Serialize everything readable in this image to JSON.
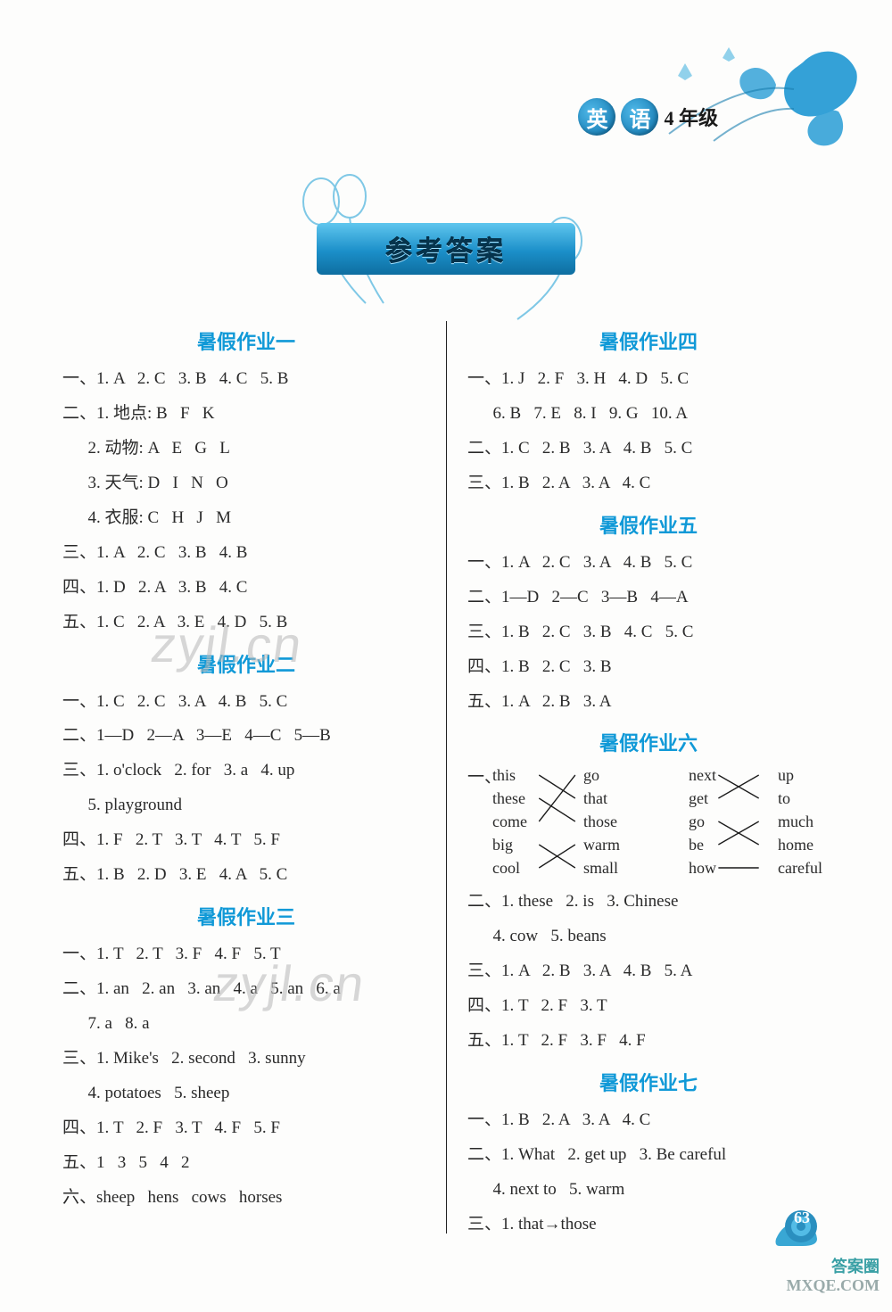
{
  "header": {
    "subject_chars": [
      "英",
      "语"
    ],
    "grade": "4 年级",
    "flower_color": "#2a9dd6",
    "leaf_color": "#1a7fb0"
  },
  "title": "参考答案",
  "page_number": "63",
  "watermark": "zyjl.cn",
  "watermark_brand_top": "答案圈",
  "watermark_brand_bottom": "MXQE.COM",
  "left": [
    {
      "type": "title",
      "text": "暑假作业一"
    },
    {
      "type": "line",
      "text": "一、1. A   2. C   3. B   4. C   5. B"
    },
    {
      "type": "line",
      "text": "二、1. 地点: B   F   K"
    },
    {
      "type": "line",
      "text": "      2. 动物: A   E   G   L"
    },
    {
      "type": "line",
      "text": "      3. 天气: D   I   N   O"
    },
    {
      "type": "line",
      "text": "      4. 衣服: C   H   J   M"
    },
    {
      "type": "line",
      "text": "三、1. A   2. C   3. B   4. B"
    },
    {
      "type": "line",
      "text": "四、1. D   2. A   3. B   4. C"
    },
    {
      "type": "line",
      "text": "五、1. C   2. A   3. E   4. D   5. B"
    },
    {
      "type": "title",
      "text": "暑假作业二"
    },
    {
      "type": "line",
      "text": "一、1. C   2. C   3. A   4. B   5. C"
    },
    {
      "type": "line",
      "text": "二、1—D   2—A   3—E   4—C   5—B"
    },
    {
      "type": "line",
      "text": "三、1. o'clock   2. for   3. a   4. up"
    },
    {
      "type": "line",
      "text": "      5. playground"
    },
    {
      "type": "line",
      "text": "四、1. F   2. T   3. T   4. T   5. F"
    },
    {
      "type": "line",
      "text": "五、1. B   2. D   3. E   4. A   5. C"
    },
    {
      "type": "title",
      "text": "暑假作业三"
    },
    {
      "type": "line",
      "text": "一、1. T   2. T   3. F   4. F   5. T"
    },
    {
      "type": "line",
      "text": "二、1. an   2. an   3. an   4. a   5. an   6. a"
    },
    {
      "type": "line",
      "text": "      7. a   8. a"
    },
    {
      "type": "line",
      "text": "三、1. Mike's   2. second   3. sunny"
    },
    {
      "type": "line",
      "text": "      4. potatoes   5. sheep"
    },
    {
      "type": "line",
      "text": "四、1. T   2. F   3. T   4. F   5. F"
    },
    {
      "type": "line",
      "text": "五、1   3   5   4   2"
    },
    {
      "type": "line",
      "text": "六、sheep   hens   cows   horses"
    }
  ],
  "right_top": [
    {
      "type": "title",
      "text": "暑假作业四"
    },
    {
      "type": "line",
      "text": "一、1. J   2. F   3. H   4. D   5. C"
    },
    {
      "type": "line",
      "text": "      6. B   7. E   8. I   9. G   10. A"
    },
    {
      "type": "line",
      "text": "二、1. C   2. B   3. A   4. B   5. C"
    },
    {
      "type": "line",
      "text": "三、1. B   2. A   3. A   4. C"
    },
    {
      "type": "title",
      "text": "暑假作业五"
    },
    {
      "type": "line",
      "text": "一、1. A   2. C   3. A   4. B   5. C"
    },
    {
      "type": "line",
      "text": "二、1—D   2—C   3—B   4—A"
    },
    {
      "type": "line",
      "text": "三、1. B   2. C   3. B   4. C   5. C"
    },
    {
      "type": "line",
      "text": "四、1. B   2. C   3. B"
    },
    {
      "type": "line",
      "text": "五、1. A   2. B   3. A"
    },
    {
      "type": "title",
      "text": "暑假作业六"
    }
  ],
  "right_bottom": [
    {
      "type": "line",
      "text": "二、1. these   2. is   3. Chinese"
    },
    {
      "type": "line",
      "text": "      4. cow   5. beans"
    },
    {
      "type": "line",
      "text": "三、1. A   2. B   3. A   4. B   5. A"
    },
    {
      "type": "line",
      "text": "四、1. T   2. F   3. T"
    },
    {
      "type": "line",
      "text": "五、1. T   2. F   3. F   4. F"
    },
    {
      "type": "title",
      "text": "暑假作业七"
    },
    {
      "type": "line",
      "text": "一、1. B   2. A   3. A   4. C"
    },
    {
      "type": "line",
      "text": "二、1. What   2. get up   3. Be careful"
    },
    {
      "type": "line",
      "text": "      4. next to   5. warm"
    },
    {
      "type": "line",
      "text": "三、1. that→those"
    }
  ],
  "matching": {
    "prefix": "一、",
    "col1": [
      "this",
      "these",
      "come",
      "big",
      "cool"
    ],
    "col2": [
      "go",
      "that",
      "those",
      "warm",
      "small"
    ],
    "col3": [
      "next",
      "get",
      "go",
      "be",
      "how"
    ],
    "col4": [
      "up",
      "to",
      "much",
      "home",
      "careful"
    ],
    "lines_left": [
      [
        0,
        1
      ],
      [
        1,
        2
      ],
      [
        2,
        0
      ],
      [
        3,
        4
      ],
      [
        4,
        3
      ]
    ],
    "lines_right": [
      [
        0,
        1
      ],
      [
        1,
        0
      ],
      [
        2,
        3
      ],
      [
        3,
        2
      ],
      [
        4,
        4
      ]
    ],
    "line_color": "#1a1a1a"
  },
  "colors": {
    "title": "#1099d7",
    "text": "#2a2a2a",
    "accent": "#2a9dd6",
    "watermark": "#b8b8b8"
  }
}
